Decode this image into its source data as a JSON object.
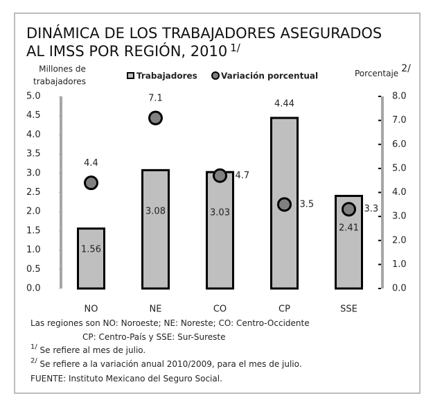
{
  "chart_data": {
    "type": "bar",
    "title": [
      "DINÁMICA DE LOS TRABAJADORES  ASEGURADOS",
      "AL IMSS POR REGIÓN, 2010"
    ],
    "title_note": "1/",
    "y_label": [
      "Millones de",
      "trabajadores"
    ],
    "y2_label": "Porcentaje",
    "y2_label_note": "2/",
    "categories": [
      "NO",
      "NE",
      "CO",
      "CP",
      "SSE"
    ],
    "series": [
      {
        "name": "Trabajadores",
        "type": "bar",
        "color": "#bfbfbf",
        "values": [
          1.56,
          3.08,
          3.03,
          4.44,
          2.41
        ],
        "value_labels": [
          "1.56",
          "3.08",
          "3.03",
          "4.44",
          "2.41"
        ]
      },
      {
        "name": "Variación porcentual",
        "type": "scatter",
        "axis": "y2",
        "color": "#808080",
        "values": [
          4.4,
          7.1,
          4.7,
          3.5,
          3.3
        ],
        "value_labels": [
          "4.4",
          "7.1",
          "4.7",
          "3.5",
          "3.3"
        ]
      }
    ],
    "ylim": [
      0,
      5
    ],
    "yticks": [
      {
        "value": 0,
        "label": "0.0"
      },
      {
        "value": 0.5,
        "label": "0.5"
      },
      {
        "value": 1,
        "label": "1.0"
      },
      {
        "value": 1.5,
        "label": "1.5"
      },
      {
        "value": 2,
        "label": "2.0"
      },
      {
        "value": 2.5,
        "label": "2.5"
      },
      {
        "value": 3,
        "label": "3.0"
      },
      {
        "value": 3.5,
        "label": "3.5"
      },
      {
        "value": 4,
        "label": "4.0"
      },
      {
        "value": 4.5,
        "label": "4.5"
      },
      {
        "value": 5,
        "label": "5.0"
      }
    ],
    "y2lim": [
      0,
      8
    ],
    "y2ticks": [
      {
        "value": 0,
        "label": "0.0"
      },
      {
        "value": 1,
        "label": "1.0"
      },
      {
        "value": 2,
        "label": "2.0"
      },
      {
        "value": 3,
        "label": "3.0"
      },
      {
        "value": 4,
        "label": "4.0"
      },
      {
        "value": 5,
        "label": "5.0"
      },
      {
        "value": 6,
        "label": "6.0"
      },
      {
        "value": 7,
        "label": "7.0"
      },
      {
        "value": 8,
        "label": "8.0"
      }
    ],
    "notes": [
      {
        "text": "Las regiones son  NO: Noroeste; NE: Noreste; CO: Centro-Occidente"
      },
      {
        "text": "CP: Centro-País y SSE: Sur-Sureste"
      },
      {
        "mark": "1/",
        "text": " Se refiere al mes de julio."
      },
      {
        "mark": "2/",
        "text": " Se refiere a la variación anual 2010/2009, para el mes de julio."
      },
      {
        "text": "FUENTE: Instituto Mexicano del Seguro Social."
      }
    ]
  }
}
